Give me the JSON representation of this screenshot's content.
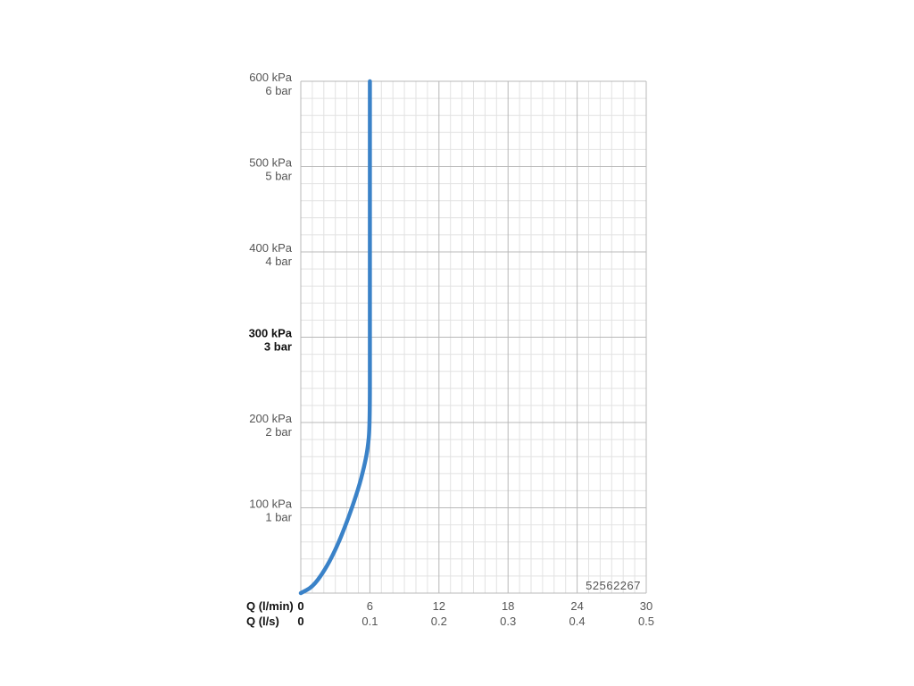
{
  "chart_data": {
    "type": "line",
    "code": "52562267",
    "x_axes": [
      {
        "name": "Q (l/min)",
        "ticks": [
          "0",
          "6",
          "12",
          "18",
          "24",
          "30"
        ],
        "range": [
          0,
          30
        ]
      },
      {
        "name": "Q (l/s)",
        "ticks": [
          "0",
          "0.1",
          "0.2",
          "0.3",
          "0.4",
          "0.5"
        ],
        "range": [
          0,
          0.5
        ]
      }
    ],
    "y_axis": {
      "range": [
        0,
        600
      ],
      "ticks": [
        {
          "value": 600,
          "kpa": "600 kPa",
          "bar": "6 bar",
          "bold": false
        },
        {
          "value": 500,
          "kpa": "500 kPa",
          "bar": "5 bar",
          "bold": false
        },
        {
          "value": 400,
          "kpa": "400 kPa",
          "bar": "4 bar",
          "bold": false
        },
        {
          "value": 300,
          "kpa": "300 kPa",
          "bar": "3 bar",
          "bold": true
        },
        {
          "value": 200,
          "kpa": "200 kPa",
          "bar": "2 bar",
          "bold": false
        },
        {
          "value": 100,
          "kpa": "100 kPa",
          "bar": "1 bar",
          "bold": false
        }
      ]
    },
    "grid": true,
    "colors": {
      "curve": "#3a82c8",
      "grid_major": "#b8b8b8",
      "grid_minor": "#e2e2e2"
    },
    "series": [
      {
        "x": [
          0,
          1.0,
          2.0,
          3.0,
          4.0,
          5.0,
          5.5,
          5.8,
          6.0,
          6.0,
          6.0
        ],
        "y": [
          0,
          7,
          25,
          50,
          83,
          122,
          148,
          168,
          195,
          300,
          600
        ]
      }
    ]
  }
}
